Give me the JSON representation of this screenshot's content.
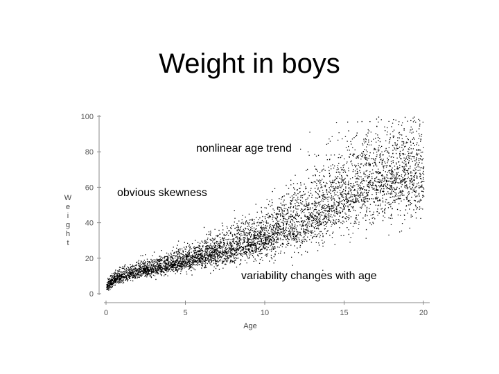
{
  "slide": {
    "title": "Weight in boys"
  },
  "annotations": [
    "nonlinear age trend",
    "obvious skewness",
    "variability changes with age"
  ],
  "chart_data": {
    "type": "scatter",
    "title": "",
    "xlabel": "Age",
    "ylabel": "Weight",
    "xlim": [
      0,
      20
    ],
    "ylim": [
      0,
      100
    ],
    "x_ticks": [
      0,
      5,
      10,
      15,
      20
    ],
    "y_ticks": [
      0,
      20,
      40,
      60,
      80,
      100
    ],
    "grid": false,
    "point_color": "#000000",
    "series": [
      {
        "points_approx_count": 9000,
        "median_curve": [
          [
            0.0,
            4
          ],
          [
            0.5,
            8
          ],
          [
            1,
            10
          ],
          [
            2,
            12.5
          ],
          [
            3,
            14.5
          ],
          [
            4,
            16.5
          ],
          [
            5,
            18.5
          ],
          [
            6,
            21
          ],
          [
            7,
            23
          ],
          [
            8,
            25.5
          ],
          [
            9,
            28.5
          ],
          [
            10,
            32
          ],
          [
            11,
            36
          ],
          [
            12,
            40
          ],
          [
            13,
            45
          ],
          [
            14,
            50
          ],
          [
            15,
            56
          ],
          [
            16,
            61
          ],
          [
            17,
            64
          ],
          [
            18,
            66
          ],
          [
            19,
            67
          ],
          [
            20,
            68
          ]
        ],
        "spread_curve": [
          [
            0,
            1.2
          ],
          [
            2,
            1.8
          ],
          [
            5,
            2.5
          ],
          [
            8,
            4
          ],
          [
            10,
            5
          ],
          [
            12,
            7
          ],
          [
            14,
            9
          ],
          [
            16,
            10
          ],
          [
            20,
            11
          ]
        ]
      }
    ]
  }
}
